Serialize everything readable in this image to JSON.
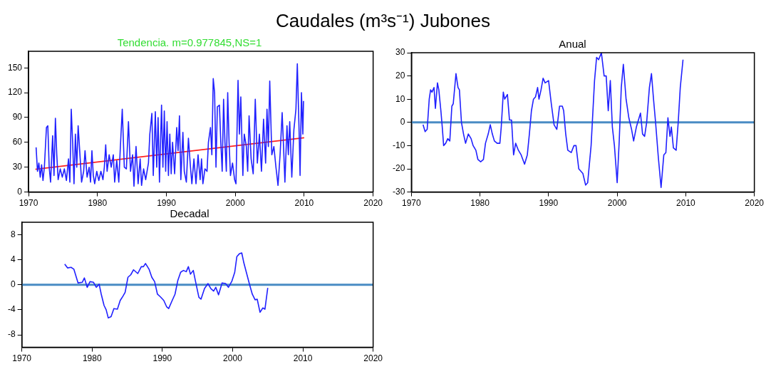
{
  "chart_data": [
    {
      "type": "line",
      "title": "Caudales (m³s⁻¹) Jubones",
      "subtitle": "Tendencia. m=0.977845,NS=1",
      "xlim": [
        1970,
        2020
      ],
      "xticks": [
        1970,
        1980,
        1990,
        2000,
        2010,
        2020
      ],
      "ylim": [
        0,
        170
      ],
      "yticks": [
        0,
        30,
        60,
        90,
        120,
        150
      ],
      "series": [
        {
          "color": "#2020ff",
          "x": [
            1971.1,
            1971.3,
            1971.5,
            1971.7,
            1971.9,
            1972.1,
            1972.3,
            1972.6,
            1972.8,
            1973.0,
            1973.2,
            1973.5,
            1973.7,
            1973.9,
            1974.1,
            1974.3,
            1974.6,
            1974.9,
            1975.2,
            1975.5,
            1975.8,
            1976.0,
            1976.2,
            1976.4,
            1976.6,
            1976.8,
            1977.0,
            1977.2,
            1977.5,
            1977.7,
            1978.0,
            1978.2,
            1978.5,
            1978.8,
            1979.0,
            1979.2,
            1979.4,
            1979.6,
            1979.9,
            1980.2,
            1980.5,
            1980.8,
            1981.0,
            1981.2,
            1981.4,
            1981.7,
            1982.0,
            1982.3,
            1982.5,
            1982.8,
            1983.1,
            1983.3,
            1983.6,
            1983.9,
            1984.2,
            1984.5,
            1984.8,
            1985.1,
            1985.3,
            1985.6,
            1985.9,
            1986.2,
            1986.4,
            1986.7,
            1987.0,
            1987.4,
            1987.6,
            1987.9,
            1988.1,
            1988.4,
            1988.6,
            1988.8,
            1989.0,
            1989.3,
            1989.5,
            1989.7,
            1989.9,
            1990.1,
            1990.3,
            1990.5,
            1990.7,
            1990.9,
            1991.2,
            1991.5,
            1991.7,
            1991.9,
            1992.1,
            1992.4,
            1992.6,
            1992.9,
            1993.2,
            1993.5,
            1993.7,
            1994.0,
            1994.3,
            1994.6,
            1994.9,
            1995.1,
            1995.3,
            1995.6,
            1995.9,
            1996.1,
            1996.4,
            1996.6,
            1996.8,
            1997.0,
            1997.2,
            1997.4,
            1997.7,
            1997.9,
            1998.1,
            1998.3,
            1998.5,
            1998.7,
            1998.9,
            1999.1,
            1999.3,
            1999.6,
            1999.9,
            2000.1,
            2000.4,
            2000.6,
            2000.8,
            2001.1,
            2001.3,
            2001.6,
            2001.8,
            2002.0,
            2002.3,
            2002.6,
            2002.9,
            2003.2,
            2003.5,
            2003.8,
            2004.1,
            2004.4,
            2004.6,
            2004.8,
            2005.0,
            2005.3,
            2005.6,
            2005.9,
            2006.2,
            2006.5,
            2006.8,
            2007.0,
            2007.2,
            2007.5,
            2007.7,
            2007.9,
            2008.2,
            2008.5,
            2008.8,
            2009.0,
            2009.3,
            2009.4,
            2009.6,
            2009.8,
            2009.9
          ],
          "values": [
            54,
            25,
            35,
            18,
            33,
            14,
            30,
            78,
            80,
            30,
            12,
            68,
            20,
            89,
            45,
            15,
            28,
            18,
            28,
            14,
            40,
            12,
            100,
            60,
            10,
            70,
            30,
            80,
            40,
            12,
            25,
            50,
            18,
            30,
            12,
            50,
            20,
            10,
            25,
            14,
            25,
            15,
            30,
            57,
            25,
            45,
            30,
            45,
            12,
            38,
            12,
            50,
            100,
            30,
            28,
            85,
            25,
            45,
            7,
            55,
            10,
            40,
            8,
            28,
            15,
            35,
            70,
            95,
            20,
            97,
            30,
            90,
            12,
            105,
            30,
            98,
            25,
            85,
            20,
            70,
            22,
            60,
            22,
            78,
            50,
            92,
            15,
            72,
            25,
            12,
            65,
            30,
            10,
            40,
            10,
            45,
            15,
            40,
            10,
            28,
            25,
            60,
            78,
            45,
            137,
            120,
            30,
            103,
            105,
            60,
            25,
            112,
            60,
            25,
            120,
            60,
            20,
            35,
            15,
            10,
            135,
            70,
            115,
            20,
            70,
            55,
            25,
            92,
            40,
            22,
            112,
            35,
            70,
            25,
            88,
            35,
            100,
            55,
            134,
            45,
            55,
            30,
            8,
            45,
            96,
            55,
            12,
            80,
            45,
            85,
            18,
            75,
            100,
            155,
            60,
            20,
            120,
            70,
            110
          ]
        },
        {
          "color": "#ff2020",
          "x": [
            1971,
            2010
          ],
          "values": [
            27.5,
            65.6
          ]
        }
      ]
    },
    {
      "type": "line",
      "title": "Anual",
      "xlim": [
        1970,
        2020
      ],
      "xticks": [
        1970,
        1980,
        1990,
        2000,
        2010,
        2020
      ],
      "ylim": [
        -30,
        30
      ],
      "yticks": [
        -30,
        -20,
        -10,
        0,
        10,
        20,
        30
      ],
      "ref_lines": [
        {
          "axis": "y",
          "value": 0,
          "color": "#4a8cc4"
        }
      ],
      "series": [
        {
          "color": "#2020ff",
          "x": [
            1971.7,
            1972.0,
            1972.3,
            1972.6,
            1972.8,
            1973.0,
            1973.3,
            1973.5,
            1973.8,
            1974.0,
            1974.3,
            1974.5,
            1974.7,
            1975.0,
            1975.3,
            1975.6,
            1975.9,
            1976.1,
            1976.5,
            1976.8,
            1977.0,
            1977.3,
            1977.6,
            1977.9,
            1978.3,
            1978.7,
            1979.0,
            1979.4,
            1979.7,
            1980.1,
            1980.5,
            1980.8,
            1981.2,
            1981.5,
            1981.8,
            1982.1,
            1982.5,
            1982.9,
            1983.1,
            1983.4,
            1983.6,
            1984.0,
            1984.3,
            1984.6,
            1984.9,
            1985.2,
            1985.6,
            1986.0,
            1986.5,
            1986.9,
            1987.2,
            1987.5,
            1987.8,
            1988.1,
            1988.4,
            1988.6,
            1988.9,
            1989.2,
            1989.5,
            1990.0,
            1990.4,
            1990.8,
            1991.2,
            1991.6,
            1992.0,
            1992.2,
            1992.5,
            1992.8,
            1993.3,
            1993.7,
            1994.0,
            1994.4,
            1995.0,
            1995.4,
            1995.7,
            1996.2,
            1996.7,
            1997.0,
            1997.3,
            1997.7,
            1998.1,
            1998.4,
            1998.7,
            1999.0,
            1999.3,
            1999.6,
            2000.0,
            2000.3,
            2000.6,
            2000.9,
            2001.3,
            2001.7,
            2002.1,
            2002.4,
            2002.8,
            2003.2,
            2003.4,
            2003.7,
            2004.0,
            2004.3,
            2004.7,
            2005.0,
            2005.3,
            2005.6,
            2006.0,
            2006.4,
            2006.8,
            2007.1,
            2007.4,
            2007.7,
            2007.9,
            2008.2,
            2008.6,
            2008.9,
            2009.2,
            2009.6
          ],
          "values": [
            -1,
            -4,
            -3,
            10,
            14,
            13,
            15,
            6,
            17,
            14,
            5,
            -2,
            -10,
            -9,
            -7,
            -8,
            7,
            8,
            21,
            15,
            14,
            0,
            -5,
            -9,
            -5,
            -7,
            -10,
            -12,
            -16,
            -17,
            -16,
            -9,
            -5,
            -1,
            -5,
            -8,
            -9,
            -9,
            -2,
            13,
            10,
            12,
            1,
            1,
            -14,
            -9,
            -12,
            -14,
            -18,
            -14,
            -5,
            5,
            10,
            11,
            15,
            10,
            14,
            19,
            17,
            18,
            8,
            -1,
            -3,
            7,
            7,
            5,
            -5,
            -12,
            -13,
            -10,
            -10,
            -20,
            -22,
            -27,
            -26,
            -10,
            18,
            28,
            27,
            30,
            20,
            20,
            5,
            18,
            -2,
            -10,
            -26,
            -8,
            15,
            25,
            10,
            2,
            -3,
            -8,
            -2,
            2,
            4,
            -5,
            -6,
            0,
            15,
            21,
            10,
            0,
            -15,
            -28,
            -14,
            -13,
            2,
            -6,
            -2,
            -11,
            -12,
            0,
            15,
            27
          ]
        }
      ]
    },
    {
      "type": "line",
      "title": "Decadal",
      "xlim": [
        1970,
        2020
      ],
      "xticks": [
        1970,
        1980,
        1990,
        2000,
        2010,
        2020
      ],
      "ylim": [
        -10,
        10
      ],
      "yticks": [
        -8,
        -4,
        0,
        4,
        8
      ],
      "ref_lines": [
        {
          "axis": "y",
          "value": 0,
          "color": "#4a8cc4"
        }
      ],
      "series": [
        {
          "color": "#2020ff",
          "x": [
            1976.1,
            1976.5,
            1977.0,
            1977.4,
            1978.0,
            1978.6,
            1978.9,
            1979.3,
            1979.7,
            1980.2,
            1980.6,
            1981.0,
            1981.3,
            1981.7,
            1982.0,
            1982.3,
            1982.7,
            1983.1,
            1983.6,
            1984.0,
            1984.4,
            1984.7,
            1985.1,
            1985.5,
            1985.9,
            1986.5,
            1987.0,
            1987.3,
            1987.6,
            1988.1,
            1988.5,
            1988.9,
            1989.3,
            1989.7,
            1990.2,
            1990.6,
            1990.9,
            1991.4,
            1991.8,
            1992.2,
            1992.6,
            1993.0,
            1993.4,
            1993.7,
            1994.0,
            1994.4,
            1994.8,
            1995.2,
            1995.5,
            1996.0,
            1996.5,
            1996.9,
            1997.3,
            1997.6,
            1998.0,
            1998.5,
            1999.0,
            1999.4,
            1999.9,
            2000.3,
            2000.6,
            2001.0,
            2001.3,
            2001.6,
            2002.0,
            2002.4,
            2002.8,
            2003.2,
            2003.5,
            2003.9,
            2004.3,
            2004.6,
            2005.0
          ],
          "values": [
            3.3,
            2.7,
            2.8,
            2.5,
            0.3,
            0.4,
            1.1,
            -0.4,
            0.5,
            0.4,
            -0.4,
            0.1,
            -1.5,
            -3.3,
            -4,
            -5.3,
            -5.1,
            -3.8,
            -3.9,
            -2.5,
            -1.8,
            -1.2,
            1.2,
            1.6,
            2.4,
            1.8,
            2.9,
            2.9,
            3.4,
            2.5,
            1.2,
            0.5,
            -1.5,
            -1.9,
            -2.5,
            -3.5,
            -3.8,
            -2.5,
            -1.5,
            0.7,
            2.0,
            2.3,
            2.1,
            2.9,
            1.7,
            2.3,
            0.1,
            -2.0,
            -2.3,
            -0.6,
            0.2,
            -0.6,
            -1.0,
            -0.4,
            -1.6,
            0.3,
            0.2,
            -0.4,
            0.6,
            2.0,
            4.5,
            5.0,
            5.1,
            3.5,
            1.8,
            0.1,
            -1.5,
            -2.4,
            -2.3,
            -4.4,
            -3.7,
            -3.9,
            -0.5
          ]
        }
      ]
    }
  ]
}
